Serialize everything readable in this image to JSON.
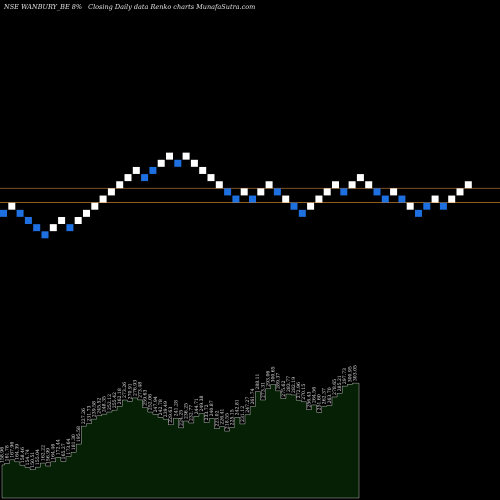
{
  "header": {
    "symbol": "NSE WANBURY_BE 8%",
    "description": "Closing Daily data  Renko  charts MunafaSutra.com"
  },
  "colors": {
    "background": "#000000",
    "up_brick": "#ffffff",
    "down_brick": "#1e6fe0",
    "ref_line_upper": "#8a5a2a",
    "ref_line_lower": "#c47a22",
    "area_fill": "#052005",
    "area_stroke": "#ffffff"
  },
  "chart_data": [
    {
      "type": "renko",
      "bricks": [
        {
          "dir": "down",
          "level": 1
        },
        {
          "dir": "up",
          "level": 2
        },
        {
          "dir": "down",
          "level": 1
        },
        {
          "dir": "down",
          "level": 0
        },
        {
          "dir": "down",
          "level": -1
        },
        {
          "dir": "down",
          "level": -2
        },
        {
          "dir": "up",
          "level": -1
        },
        {
          "dir": "up",
          "level": 0
        },
        {
          "dir": "down",
          "level": -1
        },
        {
          "dir": "up",
          "level": 0
        },
        {
          "dir": "up",
          "level": 1
        },
        {
          "dir": "up",
          "level": 2
        },
        {
          "dir": "up",
          "level": 3
        },
        {
          "dir": "up",
          "level": 4
        },
        {
          "dir": "up",
          "level": 5
        },
        {
          "dir": "up",
          "level": 6
        },
        {
          "dir": "up",
          "level": 7
        },
        {
          "dir": "down",
          "level": 6
        },
        {
          "dir": "down",
          "level": 7
        },
        {
          "dir": "up",
          "level": 8
        },
        {
          "dir": "up",
          "level": 9
        },
        {
          "dir": "down",
          "level": 8
        },
        {
          "dir": "up",
          "level": 9
        },
        {
          "dir": "up",
          "level": 8
        },
        {
          "dir": "up",
          "level": 7
        },
        {
          "dir": "up",
          "level": 6
        },
        {
          "dir": "up",
          "level": 5
        },
        {
          "dir": "down",
          "level": 4
        },
        {
          "dir": "down",
          "level": 3
        },
        {
          "dir": "up",
          "level": 4
        },
        {
          "dir": "down",
          "level": 3
        },
        {
          "dir": "up",
          "level": 4
        },
        {
          "dir": "up",
          "level": 5
        },
        {
          "dir": "down",
          "level": 4
        },
        {
          "dir": "up",
          "level": 3
        },
        {
          "dir": "down",
          "level": 2
        },
        {
          "dir": "down",
          "level": 1
        },
        {
          "dir": "up",
          "level": 2
        },
        {
          "dir": "up",
          "level": 3
        },
        {
          "dir": "up",
          "level": 4
        },
        {
          "dir": "up",
          "level": 5
        },
        {
          "dir": "down",
          "level": 4
        },
        {
          "dir": "up",
          "level": 5
        },
        {
          "dir": "up",
          "level": 6
        },
        {
          "dir": "up",
          "level": 5
        },
        {
          "dir": "down",
          "level": 4
        },
        {
          "dir": "down",
          "level": 3
        },
        {
          "dir": "up",
          "level": 4
        },
        {
          "dir": "down",
          "level": 3
        },
        {
          "dir": "up",
          "level": 2
        },
        {
          "dir": "down",
          "level": 1
        },
        {
          "dir": "down",
          "level": 2
        },
        {
          "dir": "up",
          "level": 3
        },
        {
          "dir": "down",
          "level": 2
        },
        {
          "dir": "up",
          "level": 3
        },
        {
          "dir": "up",
          "level": 4
        },
        {
          "dir": "up",
          "level": 5
        }
      ],
      "reference_lines": [
        {
          "role": "upper",
          "value": 4.5
        },
        {
          "role": "lower",
          "value": 2.5
        }
      ]
    },
    {
      "type": "area",
      "values": [
        158.96,
        161.78,
        167.96,
        164.39,
        158.46,
        154.74,
        150.51,
        155.04,
        162.22,
        156.99,
        164.46,
        172.44,
        165.27,
        173.64,
        181.3,
        195.58,
        227.26,
        231.73,
        239.58,
        245.52,
        248.35,
        252.12,
        255.42,
        262.18,
        273.26,
        270.91,
        276.93,
        273.48,
        259.63,
        252.06,
        247.94,
        242.78,
        239.49,
        229.63,
        241.28,
        224.25,
        236.25,
        232.77,
        244.71,
        249.38,
        233.72,
        240.87,
        223.02,
        226.41,
        218.55,
        225.15,
        242.81,
        231.12,
        247.27,
        261.74,
        288.11,
        273.31,
        293.06,
        300.65,
        289.37,
        275.62,
        283.77,
        282.19,
        272.96,
        270.15,
        256.43,
        264.56,
        251.6,
        262.37,
        263.7,
        278.65,
        285.21,
        297.73,
        300.95,
        303.05
      ],
      "data_labels": [
        "158.96",
        "161.78",
        "167.96",
        "164.39",
        "158.46",
        "154.74",
        "150.51",
        "155.04",
        "162.22",
        "156.99",
        "164.46",
        "172.44",
        "165.27",
        "173.64",
        "181.30",
        "195.58",
        "227.26",
        "231.73",
        "239.58",
        "245.52",
        "248.35",
        "252.12",
        "255.42",
        "262.18",
        "273.26",
        "270.91",
        "276.93",
        "273.48",
        "259.63",
        "252.06",
        "247.94",
        "242.78",
        "239.49",
        "229.63",
        "241.28",
        "224.25",
        "236.25",
        "232.77",
        "244.71",
        "249.38",
        "233.72",
        "240.87",
        "223.02",
        "226.41",
        "218.55",
        "225.15",
        "242.81",
        "231.12",
        "247.27",
        "261.74",
        "288.11",
        "273.31",
        "293.06",
        "300.65",
        "289.37",
        "275.62",
        "283.77",
        "282.19",
        "272.96",
        "270.15",
        "256.43",
        "264.56",
        "251.60",
        "262.37",
        "263.70",
        "278.65",
        "285.21",
        "297.73",
        "300.95",
        "303.05"
      ]
    }
  ]
}
